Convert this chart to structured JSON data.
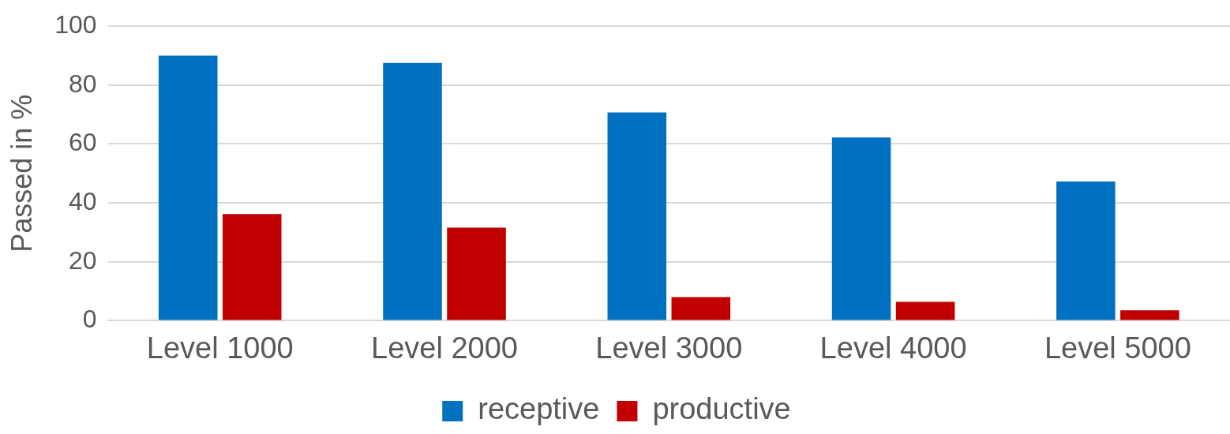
{
  "chart_data": {
    "type": "bar",
    "ylabel": "Passed in %",
    "categories": [
      "Level 1000",
      "Level 2000",
      "Level 3000",
      "Level 4000",
      "Level 5000"
    ],
    "series": [
      {
        "name": "receptive",
        "color": "#0070c0",
        "values": [
          90,
          87.5,
          70.7,
          62.2,
          47.3
        ]
      },
      {
        "name": "productive",
        "color": "#c00000",
        "values": [
          36.2,
          31.6,
          8,
          6.4,
          3.5
        ]
      }
    ],
    "ylim": [
      0,
      100
    ],
    "yticks": [
      0,
      20,
      40,
      60,
      80,
      100
    ],
    "grid": "y",
    "legend": "bottom"
  }
}
